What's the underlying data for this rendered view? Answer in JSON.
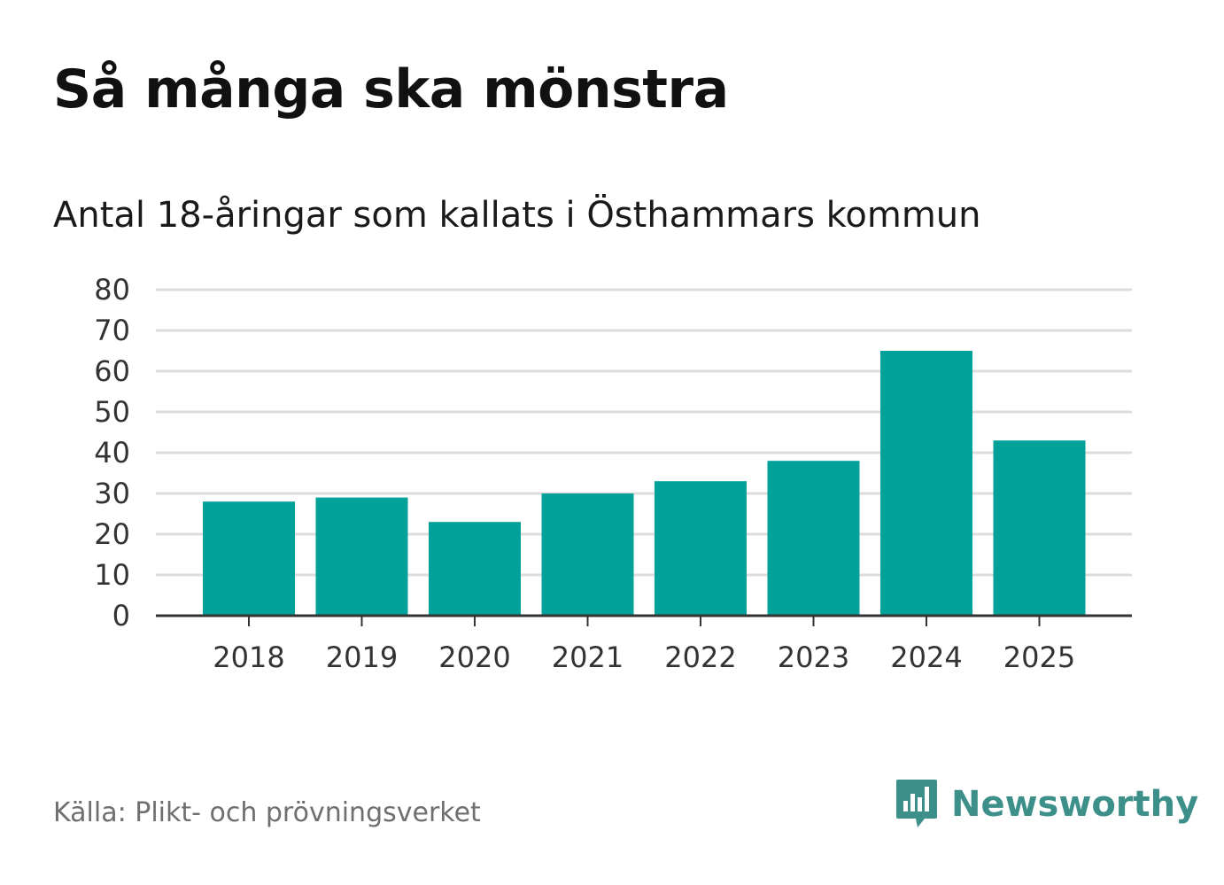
{
  "header": {
    "title": "Så många ska mönstra",
    "subtitle": "Antal 18-åringar som kallats i Östhammars kommun"
  },
  "footer": {
    "source": "Källa: Plikt- och prövningsverket",
    "brand": "Newsworthy",
    "brand_icon": "newsworthy-logo-icon"
  },
  "colors": {
    "bar": "#02a29a",
    "brand": "#3d8f8a",
    "grid": "#dcdcdc",
    "axis": "#333333"
  },
  "chart_data": {
    "type": "bar",
    "title": "Så många ska mönstra",
    "subtitle": "Antal 18-åringar som kallats i Östhammars kommun",
    "xlabel": "",
    "ylabel": "",
    "categories": [
      "2018",
      "2019",
      "2020",
      "2021",
      "2022",
      "2023",
      "2024",
      "2025"
    ],
    "values": [
      28,
      29,
      23,
      30,
      33,
      38,
      65,
      43
    ],
    "ylim": [
      0,
      80
    ],
    "yticks": [
      "0",
      "10",
      "20",
      "30",
      "40",
      "50",
      "60",
      "70",
      "80"
    ],
    "grid": true,
    "legend": "none"
  }
}
